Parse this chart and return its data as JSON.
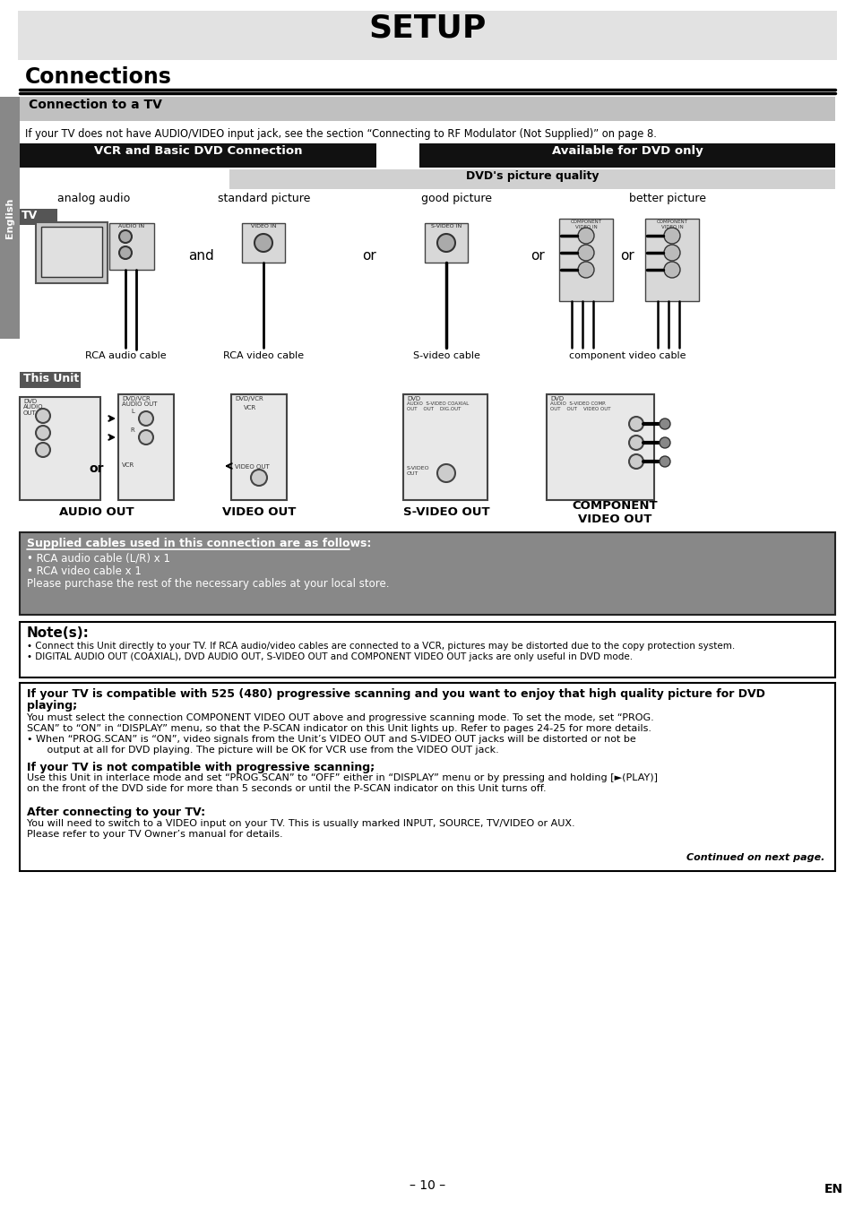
{
  "title": "SETUP",
  "section_title": "Connections",
  "subsection_title": "Connection to a TV",
  "sidebar_text": "English",
  "intro_text": "If your TV does not have AUDIO/VIDEO input jack, see the section “Connecting to RF Modulator (Not Supplied)” on page 8.",
  "box1_title": "VCR and Basic DVD Connection",
  "box2_title": "Available for DVD only",
  "dvd_quality_text": "DVD's picture quality",
  "col_labels": [
    "analog audio",
    "standard picture",
    "good picture",
    "better picture"
  ],
  "cable_labels_tv": [
    "RCA audio cable",
    "RCA video cable",
    "S-video cable",
    "component video cable"
  ],
  "out_labels": [
    "AUDIO OUT",
    "VIDEO OUT",
    "S-VIDEO OUT",
    "COMPONENT\nVIDEO OUT"
  ],
  "supplied_title": "Supplied cables used in this connection are as follows:",
  "supplied_items": [
    "• RCA audio cable (L/R) x 1",
    "• RCA video cable x 1",
    "Please purchase the rest of the necessary cables at your local store."
  ],
  "notes_title": "Note(s):",
  "note1": "• Connect this Unit directly to your TV. If RCA audio/video cables are connected to a VCR, pictures may be distorted due to the copy protection system.",
  "note2": "• DIGITAL AUDIO OUT (COAXIAL), DVD AUDIO OUT, S-VIDEO OUT and COMPONENT VIDEO OUT jacks are only useful in DVD mode.",
  "box3_line1": "If your TV is compatible with 525 (480) progressive scanning and you want to enjoy that high quality picture for DVD",
  "box3_line2": "playing;",
  "box3_body1": "You must select the connection COMPONENT VIDEO OUT above and progressive scanning mode. To set the mode, set “PROG.",
  "box3_body2": "SCAN” to “ON” in “DISPLAY” menu, so that the P-SCAN indicator on this Unit lights up. Refer to pages 24-25 for more details.",
  "box3_body3": "• When “PROG.SCAN” is “ON”, video signals from the Unit’s VIDEO OUT and S-VIDEO OUT jacks will be distorted or not be",
  "box3_body4": "   output at all for DVD playing. The picture will be OK for VCR use from the VIDEO OUT jack.",
  "box4_title": "If your TV is not compatible with progressive scanning;",
  "box4_body1": "Use this Unit in interlace mode and set “PROG.SCAN” to “OFF” either in “DISPLAY” menu or by pressing and holding [►(PLAY)]",
  "box4_body2": "on the front of the DVD side for more than 5 seconds or until the P-SCAN indicator on this Unit turns off.",
  "after_title": "After connecting to your TV:",
  "after_body1": "You will need to switch to a VIDEO input on your TV. This is usually marked INPUT, SOURCE, TV/VIDEO or AUX.",
  "after_body2": "Please refer to your TV Owner’s manual for details.",
  "footer_text": "Continued on next page.",
  "page_num": "– 10 –",
  "en_label": "EN"
}
